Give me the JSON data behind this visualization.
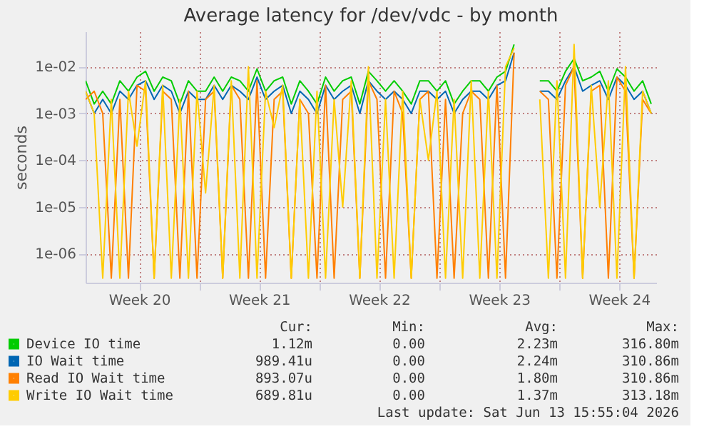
{
  "chart_data": {
    "type": "line",
    "title": "Average latency for /dev/vdc - by month",
    "ylabel": "seconds",
    "log": "y",
    "grid": true,
    "legend": "bottom",
    "line_style": "solid",
    "xlim": [
      "2026-05-11T09:00",
      "2026-06-13T16:00"
    ],
    "xticks": [
      {
        "value": "2026-05-14T12:00",
        "label": "Week 20"
      },
      {
        "value": "2026-05-18T00:00",
        "label": null
      },
      {
        "value": "2026-05-21T12:00",
        "label": "Week 21"
      },
      {
        "value": "2026-05-25T00:00",
        "label": null
      },
      {
        "value": "2026-05-28T12:00",
        "label": "Week 22"
      },
      {
        "value": "2026-06-01T00:00",
        "label": null
      },
      {
        "value": "2026-06-04T12:00",
        "label": "Week 23"
      },
      {
        "value": "2026-06-08T00:00",
        "label": null
      },
      {
        "value": "2026-06-11T12:00",
        "label": "Week 24"
      }
    ],
    "ylim": [
      2.4e-07,
      0.057
    ],
    "yticks": [
      {
        "value": 1e-06,
        "label": "1e-06"
      },
      {
        "value": 1e-05,
        "label": "1e-05"
      },
      {
        "value": 0.0001,
        "label": "1e-04"
      },
      {
        "value": 0.001,
        "label": "1e-03"
      },
      {
        "value": 0.01,
        "label": "1e-02"
      }
    ],
    "x": [
      "2026-05-11T09:00",
      "2026-05-11T21:00",
      "2026-05-12T09:00",
      "2026-05-12T21:00",
      "2026-05-13T09:00",
      "2026-05-13T21:00",
      "2026-05-14T09:00",
      "2026-05-14T21:00",
      "2026-05-15T09:00",
      "2026-05-15T21:00",
      "2026-05-16T09:00",
      "2026-05-16T21:00",
      "2026-05-17T09:00",
      "2026-05-17T21:00",
      "2026-05-18T09:00",
      "2026-05-18T21:00",
      "2026-05-19T09:00",
      "2026-05-19T21:00",
      "2026-05-20T09:00",
      "2026-05-20T21:00",
      "2026-05-21T09:00",
      "2026-05-21T21:00",
      "2026-05-22T09:00",
      "2026-05-22T21:00",
      "2026-05-23T09:00",
      "2026-05-23T21:00",
      "2026-05-24T09:00",
      "2026-05-24T21:00",
      "2026-05-25T09:00",
      "2026-05-25T21:00",
      "2026-05-26T09:00",
      "2026-05-26T21:00",
      "2026-05-27T09:00",
      "2026-05-27T21:00",
      "2026-05-28T09:00",
      "2026-05-28T21:00",
      "2026-05-29T09:00",
      "2026-05-29T21:00",
      "2026-05-30T09:00",
      "2026-05-30T21:00",
      "2026-05-31T09:00",
      "2026-05-31T21:00",
      "2026-06-01T09:00",
      "2026-06-01T21:00",
      "2026-06-02T09:00",
      "2026-06-02T21:00",
      "2026-06-03T09:00",
      "2026-06-03T21:00",
      "2026-06-04T09:00",
      "2026-06-04T21:00",
      "2026-06-05T09:00",
      "2026-06-05T21:00",
      "2026-06-06T09:00",
      "2026-06-06T21:00",
      "2026-06-07T09:00",
      "2026-06-07T21:00",
      "2026-06-08T09:00",
      "2026-06-08T21:00",
      "2026-06-09T09:00",
      "2026-06-09T21:00",
      "2026-06-10T09:00",
      "2026-06-10T21:00",
      "2026-06-11T09:00",
      "2026-06-11T21:00",
      "2026-06-12T09:00",
      "2026-06-12T21:00",
      "2026-06-13T09:00"
    ],
    "series": [
      {
        "name": "Device IO time",
        "color": "#00cc00",
        "values": [
          0.005,
          0.0016,
          0.003,
          0.0016,
          0.005,
          0.003,
          0.006,
          0.008,
          0.003,
          0.006,
          0.005,
          0.0016,
          0.005,
          0.003,
          0.003,
          0.006,
          0.003,
          0.006,
          0.005,
          0.003,
          0.009,
          0.003,
          0.005,
          0.006,
          0.0016,
          0.005,
          0.003,
          0.0016,
          0.006,
          0.003,
          0.005,
          0.006,
          0.0016,
          0.008,
          0.005,
          0.003,
          0.005,
          0.003,
          0.0016,
          0.005,
          0.005,
          0.003,
          0.005,
          0.0016,
          0.003,
          0.005,
          0.005,
          0.003,
          0.006,
          0.008,
          0.03,
          null,
          null,
          0.005,
          0.005,
          0.003,
          0.008,
          0.015,
          0.005,
          0.006,
          0.008,
          0.003,
          0.009,
          0.006,
          0.003,
          0.005,
          0.0016
        ]
      },
      {
        "name": "IO Wait time",
        "color": "#0066b3",
        "values": [
          0.003,
          0.001,
          0.002,
          0.001,
          0.003,
          0.002,
          0.004,
          0.005,
          0.002,
          0.004,
          0.003,
          0.001,
          0.003,
          0.002,
          0.002,
          0.004,
          0.002,
          0.004,
          0.003,
          0.002,
          0.006,
          0.002,
          0.003,
          0.004,
          0.001,
          0.003,
          0.002,
          0.001,
          0.004,
          0.002,
          0.003,
          0.004,
          0.001,
          0.005,
          0.003,
          0.002,
          0.003,
          0.002,
          0.001,
          0.003,
          0.003,
          0.002,
          0.003,
          0.001,
          0.002,
          0.003,
          0.003,
          0.002,
          0.004,
          0.005,
          0.02,
          null,
          null,
          0.003,
          0.003,
          0.002,
          0.005,
          0.01,
          0.003,
          0.004,
          0.005,
          0.002,
          0.006,
          0.004,
          0.002,
          0.003,
          0.001
        ]
      },
      {
        "name": "Read IO Wait time",
        "color": "#ff8000",
        "values": [
          0.002,
          0.003,
          0.001,
          3e-07,
          0.002,
          3e-07,
          0.004,
          0.003,
          3e-07,
          0.003,
          0.002,
          3e-07,
          0.003,
          3e-07,
          0.002,
          0.003,
          3e-07,
          0.004,
          0.002,
          3e-07,
          0.005,
          3e-07,
          0.002,
          0.003,
          3e-07,
          0.002,
          0.001,
          3e-07,
          0.004,
          3e-07,
          0.002,
          0.003,
          3e-07,
          0.005,
          0.002,
          3e-07,
          0.003,
          0.001,
          3e-07,
          0.002,
          0.003,
          3e-07,
          0.002,
          3e-07,
          0.001,
          0.003,
          0.002,
          3e-07,
          0.004,
          3e-07,
          0.02,
          null,
          null,
          0.003,
          0.002,
          3e-07,
          0.004,
          0.01,
          3e-07,
          0.003,
          0.004,
          3e-07,
          0.006,
          0.003,
          3e-07,
          0.002,
          0.001
        ]
      },
      {
        "name": "Write IO Wait time",
        "color": "#ffcc00",
        "values": [
          0.003,
          0.001,
          3e-07,
          0.002,
          3e-07,
          0.003,
          0.0002,
          0.005,
          3e-07,
          0.004,
          3e-07,
          0.002,
          3e-07,
          0.003,
          2e-05,
          0.004,
          3e-07,
          0.005,
          3e-07,
          0.01,
          3e-07,
          0.003,
          0.0005,
          0.004,
          3e-07,
          0.002,
          3e-07,
          0.003,
          3e-07,
          0.002,
          1e-05,
          0.005,
          3e-07,
          0.01,
          3e-07,
          0.002,
          3e-07,
          0.003,
          3e-07,
          0.002,
          0.0001,
          0.003,
          3e-07,
          0.002,
          3e-07,
          0.005,
          3e-07,
          0.003,
          3e-07,
          0.01,
          0.025,
          null,
          null,
          0.002,
          3e-07,
          0.005,
          3e-07,
          0.03,
          3e-07,
          0.004,
          1e-05,
          0.005,
          3e-07,
          0.01,
          3e-07,
          0.003,
          0.001
        ]
      }
    ],
    "annotations": [
      "Cur:",
      "Min:",
      "Avg:",
      "Max:",
      "1.12m",
      "0.00",
      "2.23m",
      "316.80m",
      "989.41u",
      "0.00",
      "2.24m",
      "310.86m",
      "893.07u",
      "0.00",
      "1.80m",
      "310.86m",
      "689.81u",
      "0.00",
      "1.37m",
      "313.18m",
      "Last update: Sat Jun 13 15:55:04 2026"
    ]
  }
}
